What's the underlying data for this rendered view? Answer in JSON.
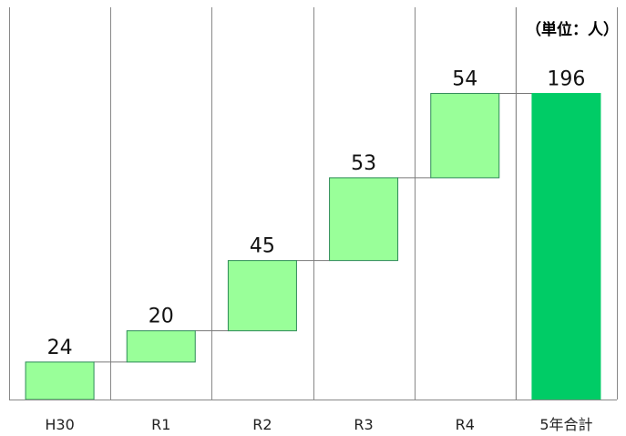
{
  "chart_data": {
    "type": "bar",
    "subtype": "waterfall",
    "unit_label": "（単位：人）",
    "categories": [
      "H30",
      "R1",
      "R2",
      "R3",
      "R4",
      "5年合計"
    ],
    "values": [
      24,
      20,
      45,
      53,
      54,
      196
    ],
    "is_total": [
      false,
      false,
      false,
      false,
      false,
      true
    ],
    "ylim": [
      0,
      220
    ],
    "grid": "vertical category dividers",
    "colors": {
      "increment_fill": "#99ff99",
      "increment_stroke": "#2e8b57",
      "total_fill": "#00cc66",
      "gridline": "#888888",
      "connector": "#7a7a7a"
    }
  }
}
